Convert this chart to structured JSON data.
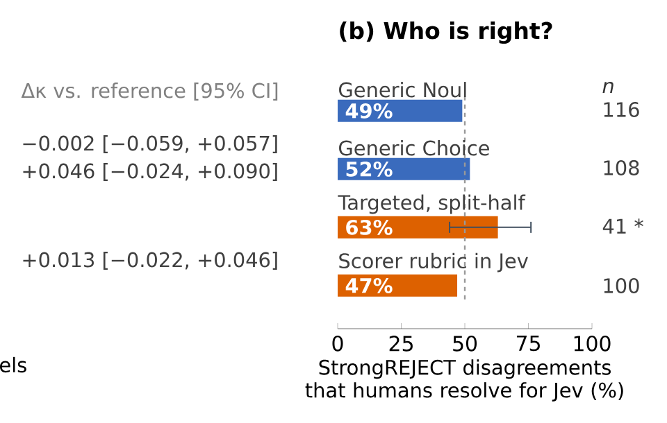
{
  "chart_data": {
    "type": "bar",
    "orientation": "horizontal",
    "title": "(b) Who is right?",
    "xlabel": "StrongREJECT disagreements that humans resolve for Jev (%)",
    "categories": [
      "Generic Noul",
      "Generic Choice",
      "Targeted, split-half",
      "Scorer rubric in Jev"
    ],
    "values": [
      49,
      52,
      63,
      47
    ],
    "colors": [
      "#3a6bbd",
      "#3a6bbd",
      "#dd6100",
      "#dd6100"
    ],
    "value_labels": [
      "49%",
      "52%",
      "63%",
      "47%"
    ],
    "errors": [
      null,
      null,
      [
        44,
        76
      ],
      null
    ],
    "xlim": [
      0,
      100
    ],
    "xticks": [
      0,
      25,
      50,
      75,
      100
    ],
    "ref_lines": [
      {
        "axis": "x",
        "value": 50,
        "color": "#999999",
        "line_style": "dashed"
      }
    ],
    "annotations": [
      "Δκ vs. reference [95% CI]",
      "−0.002 [−0.059, +0.057]",
      "+0.046 [−0.024, +0.090]",
      "+0.013 [−0.022, +0.046]",
      "els",
      "n",
      "116",
      "108",
      "41 *",
      "100"
    ]
  }
}
